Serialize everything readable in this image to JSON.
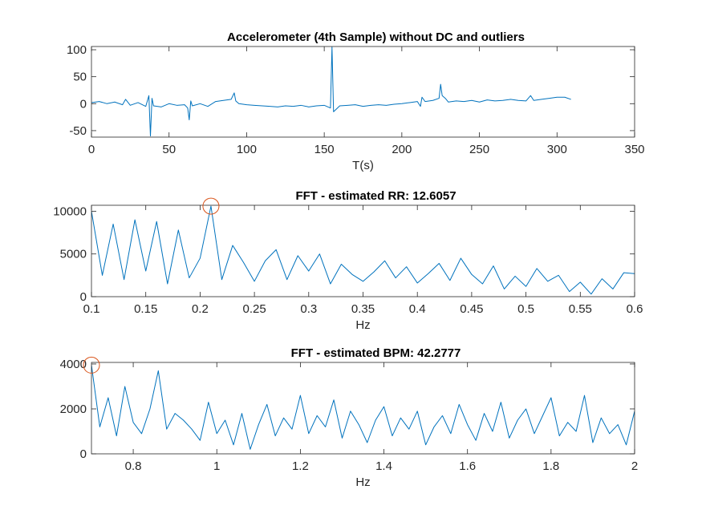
{
  "chart_data": [
    {
      "type": "line",
      "title": "Accelerometer (4th Sample) without DC and outliers",
      "xlabel": "T(s)",
      "x": [
        0,
        5,
        10,
        15,
        20,
        22,
        25,
        30,
        35,
        37,
        38,
        39,
        40,
        45,
        50,
        55,
        60,
        62,
        63,
        64,
        65,
        70,
        75,
        80,
        85,
        90,
        92,
        93,
        95,
        100,
        105,
        110,
        115,
        120,
        125,
        130,
        135,
        140,
        145,
        150,
        154,
        155,
        156,
        160,
        165,
        170,
        175,
        180,
        185,
        190,
        195,
        200,
        205,
        210,
        212,
        213,
        215,
        220,
        224,
        225,
        226,
        228,
        230,
        235,
        240,
        245,
        250,
        255,
        260,
        265,
        270,
        275,
        280,
        283,
        285,
        290,
        295,
        300,
        305,
        309
      ],
      "values": [
        2,
        4,
        0,
        3,
        -2,
        8,
        -3,
        2,
        -5,
        15,
        -60,
        10,
        -4,
        -6,
        0,
        -3,
        -2,
        -8,
        -30,
        5,
        -4,
        0,
        -5,
        4,
        6,
        8,
        20,
        5,
        0,
        -2,
        -3,
        -4,
        -5,
        -6,
        -4,
        -5,
        -3,
        -6,
        -4,
        -3,
        -8,
        105,
        -15,
        -4,
        -3,
        -2,
        -5,
        -3,
        -2,
        -3,
        -1,
        0,
        2,
        4,
        -5,
        12,
        4,
        6,
        10,
        36,
        15,
        10,
        3,
        5,
        4,
        6,
        3,
        7,
        5,
        6,
        8,
        6,
        5,
        15,
        6,
        8,
        10,
        12,
        12,
        8
      ],
      "color": "#0072bd",
      "xlim": [
        0,
        350
      ],
      "xticks": [
        0,
        50,
        100,
        150,
        200,
        250,
        300,
        350
      ],
      "ylim": [
        -62,
        106
      ],
      "yticks": [
        -50,
        0,
        50,
        100
      ]
    },
    {
      "type": "line",
      "title": "FFT - estimated RR: 12.6057",
      "xlabel": "Hz",
      "x": [
        0.1,
        0.11,
        0.12,
        0.13,
        0.14,
        0.15,
        0.16,
        0.17,
        0.18,
        0.19,
        0.2,
        0.21,
        0.22,
        0.23,
        0.24,
        0.25,
        0.26,
        0.27,
        0.28,
        0.29,
        0.3,
        0.31,
        0.32,
        0.33,
        0.34,
        0.35,
        0.36,
        0.37,
        0.38,
        0.39,
        0.4,
        0.41,
        0.42,
        0.43,
        0.44,
        0.45,
        0.46,
        0.47,
        0.48,
        0.49,
        0.5,
        0.51,
        0.52,
        0.53,
        0.54,
        0.55,
        0.56,
        0.57,
        0.58,
        0.59,
        0.6
      ],
      "values": [
        10000,
        2500,
        8500,
        2000,
        9000,
        3000,
        8800,
        1500,
        7800,
        2200,
        4500,
        10600,
        2000,
        6000,
        4000,
        1800,
        4200,
        5500,
        2000,
        4800,
        3000,
        5000,
        1500,
        3800,
        2600,
        1800,
        2900,
        4200,
        2200,
        3500,
        1600,
        2700,
        3900,
        1900,
        4500,
        2600,
        1500,
        3600,
        900,
        2400,
        1200,
        3300,
        1800,
        2500,
        600,
        1700,
        300,
        2100,
        900,
        2800,
        2700
      ],
      "color": "#0072bd",
      "peak": {
        "x": 0.21,
        "y": 10600,
        "color": "#d95319"
      },
      "xlim": [
        0.1,
        0.6
      ],
      "xticks": [
        0.1,
        0.15,
        0.2,
        0.25,
        0.3,
        0.35,
        0.4,
        0.45,
        0.5,
        0.55,
        0.6
      ],
      "ylim": [
        0,
        10700
      ],
      "yticks": [
        0,
        5000,
        10000
      ]
    },
    {
      "type": "line",
      "title": "FFT - estimated BPM: 42.2777",
      "xlabel": "Hz",
      "x": [
        0.7,
        0.72,
        0.74,
        0.76,
        0.78,
        0.8,
        0.82,
        0.84,
        0.86,
        0.88,
        0.9,
        0.92,
        0.94,
        0.96,
        0.98,
        1,
        1.02,
        1.04,
        1.06,
        1.08,
        1.1,
        1.12,
        1.14,
        1.16,
        1.18,
        1.2,
        1.22,
        1.24,
        1.26,
        1.28,
        1.3,
        1.32,
        1.34,
        1.36,
        1.38,
        1.4,
        1.42,
        1.44,
        1.46,
        1.48,
        1.5,
        1.52,
        1.54,
        1.56,
        1.58,
        1.6,
        1.62,
        1.64,
        1.66,
        1.68,
        1.7,
        1.72,
        1.74,
        1.76,
        1.78,
        1.8,
        1.82,
        1.84,
        1.86,
        1.88,
        1.9,
        1.92,
        1.94,
        1.96,
        1.98,
        2
      ],
      "values": [
        3950,
        1200,
        2500,
        800,
        3000,
        1400,
        900,
        2000,
        3700,
        1100,
        1800,
        1500,
        1100,
        600,
        2300,
        900,
        1500,
        400,
        1800,
        200,
        1300,
        2200,
        800,
        1600,
        1100,
        2600,
        900,
        1700,
        1200,
        2400,
        700,
        1900,
        1300,
        500,
        1500,
        2100,
        800,
        1600,
        1100,
        1900,
        400,
        1200,
        1700,
        900,
        2200,
        1300,
        600,
        1800,
        1000,
        2300,
        700,
        1500,
        2000,
        900,
        1700,
        2500,
        800,
        1400,
        1000,
        2600,
        500,
        1600,
        900,
        1300,
        400,
        1900
      ],
      "color": "#0072bd",
      "peak": {
        "x": 0.7,
        "y": 3950,
        "color": "#d95319"
      },
      "xlim": [
        0.7,
        2
      ],
      "xticks": [
        0.8,
        1,
        1.2,
        1.4,
        1.6,
        1.8,
        2
      ],
      "ylim": [
        0,
        4070
      ],
      "yticks": [
        0,
        2000,
        4000
      ]
    }
  ]
}
